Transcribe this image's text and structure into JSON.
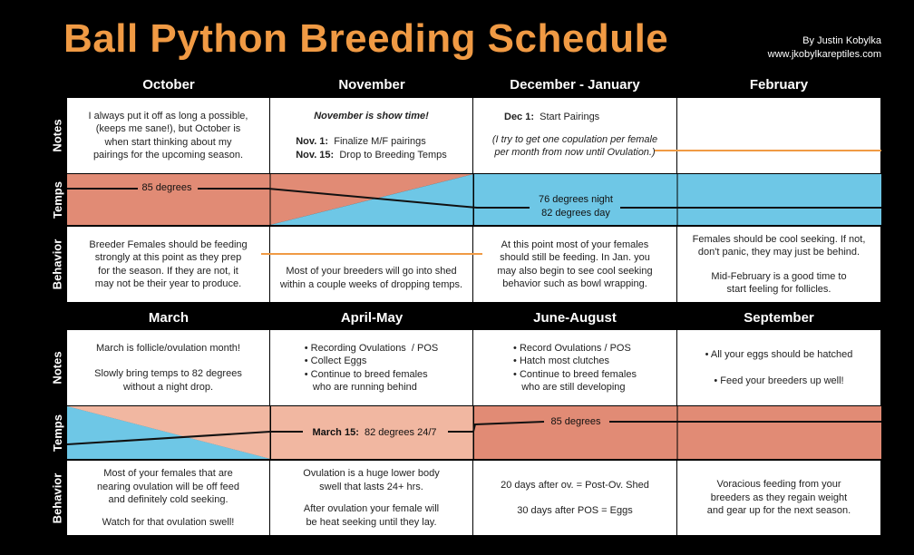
{
  "title": "Ball Python Breeding Schedule",
  "author": "By Justin Kobylka",
  "website": "www.jkobylkareptiles.com",
  "colors": {
    "title": "#f09a44",
    "warm": "#e18b75",
    "warm_light": "#f1b7a1",
    "cool": "#6ec7e6",
    "line": "#f09a44"
  },
  "row_labels": {
    "notes": "Notes",
    "temps": "Temps",
    "behavior": "Behavior"
  },
  "top": {
    "months": [
      "October",
      "November",
      "December - January",
      "February"
    ],
    "notes": {
      "october": [
        "I always put it off as long a possible,",
        "(keeps me sane!), but October is",
        "when start thinking about my",
        "pairings for the upcoming season."
      ],
      "november_heading": "November is show time!",
      "november_items": [
        {
          "label": "Nov. 1:",
          "text": "Finalize M/F pairings"
        },
        {
          "label": "Nov. 15:",
          "text": "Drop to Breeding Temps"
        }
      ],
      "december": {
        "label": "Dec 1:",
        "text": "Start Pairings"
      },
      "december_note": [
        "(I try to get one copulation per female",
        "per month from now until Ovulation.)"
      ]
    },
    "temps": {
      "warm_label": "85 degrees",
      "cool_night": "76 degrees night",
      "cool_day": "82 degrees day"
    },
    "behavior": {
      "october": [
        "Breeder Females should be feeding",
        "strongly at this point as they prep",
        "for the season.  If they are not, it",
        "may not be their year to produce."
      ],
      "november": [
        "Most of your breeders will go into shed",
        "within a couple weeks of dropping temps."
      ],
      "december": [
        "At this point most of your females",
        "should still be feeding.  In Jan. you",
        "may also begin to see cool seeking",
        "behavior such as bowl wrapping."
      ],
      "february_1": [
        "Females should be cool seeking.  If not,",
        "don't panic, they may just be behind."
      ],
      "february_2": [
        "Mid-February is a good time to",
        "start feeling for follicles."
      ]
    }
  },
  "bottom": {
    "months": [
      "March",
      "April-May",
      "June-August",
      "September"
    ],
    "notes": {
      "march_1": "March is follicle/ovulation month!",
      "march_2": [
        "Slowly bring temps to 82 degrees",
        "without a night drop."
      ],
      "april": [
        "• Recording Ovulations  / POS",
        "• Collect Eggs",
        "• Continue to breed females",
        "   who are running behind"
      ],
      "june": [
        "• Record Ovulations / POS",
        "• Hatch most clutches",
        "• Continue to breed females",
        "   who are still developing"
      ],
      "september_1": "• All your eggs should be hatched",
      "september_2": "• Feed your breeders up well!"
    },
    "temps": {
      "march_label": "March 15:",
      "march_text": "82 degrees 24/7",
      "warm_label": "85 degrees"
    },
    "behavior": {
      "march_1": [
        "Most of your females that are",
        "nearing ovulation will be off feed",
        "and definitely cold seeking."
      ],
      "march_2": "Watch for that ovulation swell!",
      "april_1": [
        "Ovulation is a huge lower body",
        "swell that lasts 24+ hrs."
      ],
      "april_2": [
        "After ovulation your female will",
        "be heat seeking until they lay."
      ],
      "june_1": "20 days after ov. = Post-Ov. Shed",
      "june_2": "30 days after POS = Eggs",
      "september": [
        "Voracious feeding from your",
        "breeders as they regain weight",
        "and gear up for the next season."
      ]
    }
  }
}
